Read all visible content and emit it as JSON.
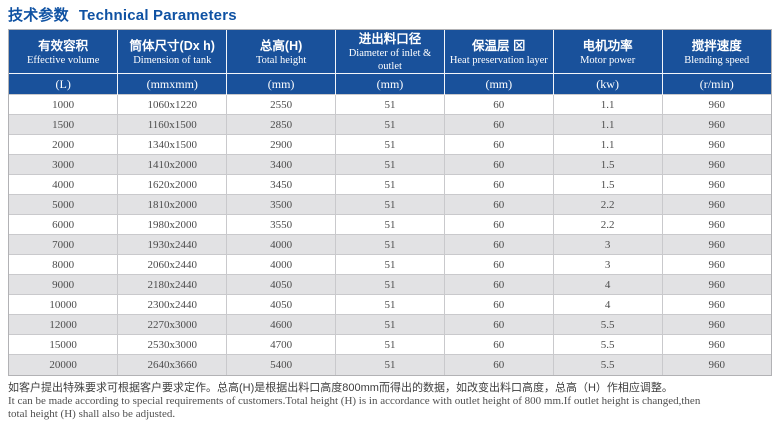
{
  "title": {
    "zh": "技术参数",
    "en": "Technical Parameters"
  },
  "colors": {
    "title_blue": "#0f52a3",
    "header_bg": "#19519b",
    "row_alt": "#e2e2e4",
    "border": "#b2b2b5",
    "text": "#4c4c4c"
  },
  "table": {
    "columns": [
      {
        "zh": "有效容积",
        "en": "Effective volume",
        "unit": "(L)"
      },
      {
        "zh": "筒体尺寸(Dx h)",
        "en": "Dimension of tank",
        "unit": "(mmxmm)"
      },
      {
        "zh": "总高(H)",
        "en": "Total height",
        "unit": "(mm)"
      },
      {
        "zh": "进出料口径",
        "en": "Diameter of inlet & outlet",
        "unit": "(mm)"
      },
      {
        "zh": "保温层 ⊠",
        "en": "Heat preservation layer",
        "unit": "(mm)"
      },
      {
        "zh": "电机功率",
        "en": "Motor power",
        "unit": "(kw)"
      },
      {
        "zh": "搅拌速度",
        "en": "Blending speed",
        "unit": "(r/min)"
      }
    ],
    "rows": [
      [
        "1000",
        "1060x1220",
        "2550",
        "51",
        "60",
        "1.1",
        "960"
      ],
      [
        "1500",
        "1160x1500",
        "2850",
        "51",
        "60",
        "1.1",
        "960"
      ],
      [
        "2000",
        "1340x1500",
        "2900",
        "51",
        "60",
        "1.1",
        "960"
      ],
      [
        "3000",
        "1410x2000",
        "3400",
        "51",
        "60",
        "1.5",
        "960"
      ],
      [
        "4000",
        "1620x2000",
        "3450",
        "51",
        "60",
        "1.5",
        "960"
      ],
      [
        "5000",
        "1810x2000",
        "3500",
        "51",
        "60",
        "2.2",
        "960"
      ],
      [
        "6000",
        "1980x2000",
        "3550",
        "51",
        "60",
        "2.2",
        "960"
      ],
      [
        "7000",
        "1930x2440",
        "4000",
        "51",
        "60",
        "3",
        "960"
      ],
      [
        "8000",
        "2060x2440",
        "4000",
        "51",
        "60",
        "3",
        "960"
      ],
      [
        "9000",
        "2180x2440",
        "4050",
        "51",
        "60",
        "4",
        "960"
      ],
      [
        "10000",
        "2300x2440",
        "4050",
        "51",
        "60",
        "4",
        "960"
      ],
      [
        "12000",
        "2270x3000",
        "4600",
        "51",
        "60",
        "5.5",
        "960"
      ],
      [
        "15000",
        "2530x3000",
        "4700",
        "51",
        "60",
        "5.5",
        "960"
      ],
      [
        "20000",
        "2640x3660",
        "5400",
        "51",
        "60",
        "5.5",
        "960"
      ]
    ]
  },
  "footer": {
    "zh": "如客户提出特殊要求可根据客户要求定作。总高(H)是根据出料口高度800mm而得出的数据，如改变出料口高度，总高（H）作相应调整。",
    "en_line1": "It can be made according to special requirements of customers.Total height (H) is in accordance with outlet height of 800 mm.If outlet height is changed,then",
    "en_line2": "total height (H) shall also be adjusted."
  }
}
